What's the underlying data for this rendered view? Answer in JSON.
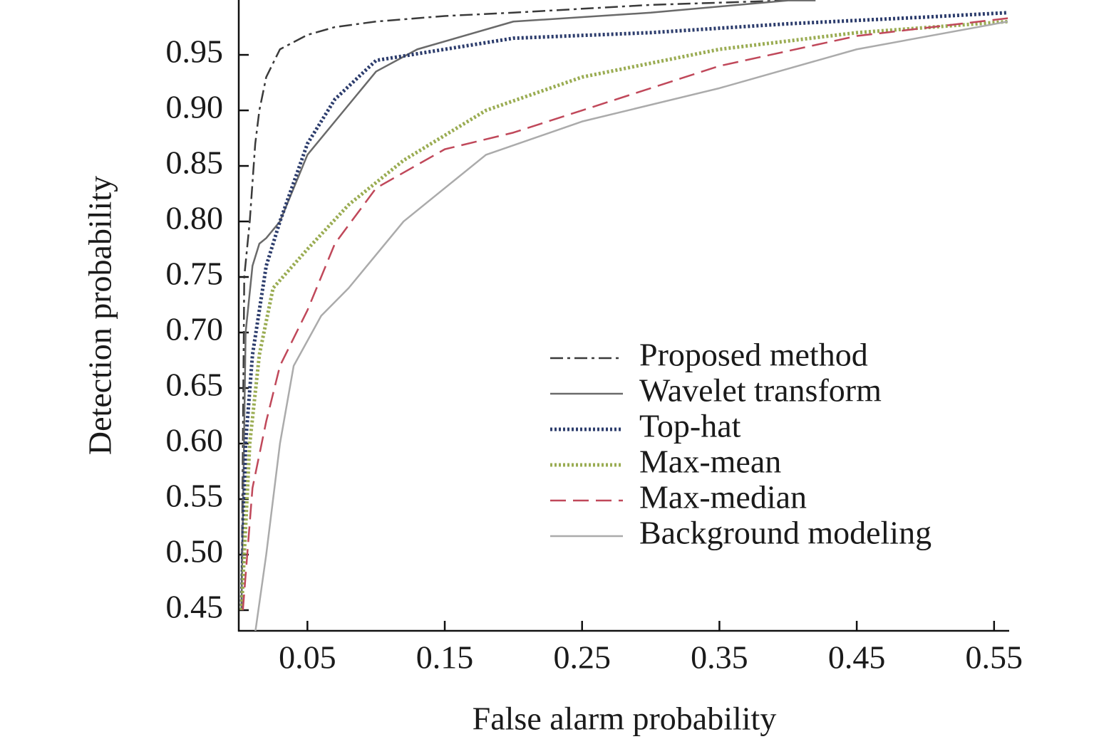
{
  "chart_data": {
    "type": "line",
    "xlabel": "False alarm probability",
    "ylabel": "Detection probability",
    "xlim": [
      0,
      0.561
    ],
    "ylim": [
      0.4314,
      0.9994
    ],
    "xticks": [
      0.05,
      0.15,
      0.25,
      0.35,
      0.45,
      0.55
    ],
    "yticks": [
      0.45,
      {
        "value": 0.5,
        "label": "0.50"
      },
      0.55,
      {
        "value": 0.6,
        "label": "0.60"
      },
      0.65,
      {
        "value": 0.7,
        "label": "0.70"
      },
      0.75,
      {
        "value": 0.8,
        "label": "0.80"
      },
      0.85,
      {
        "value": 0.9,
        "label": "0.90"
      },
      0.95
    ],
    "legend": "lower-right",
    "series": [
      {
        "name": "Proposed method",
        "color": "#3a3a3a",
        "dash": "dashdot",
        "x": [
          0.002,
          0.004,
          0.008,
          0.012,
          0.015,
          0.02,
          0.03,
          0.05,
          0.07,
          0.1,
          0.15,
          0.2,
          0.3,
          0.4
        ],
        "values": [
          0.45,
          0.75,
          0.8,
          0.87,
          0.9,
          0.93,
          0.955,
          0.968,
          0.975,
          0.98,
          0.985,
          0.988,
          0.995,
          0.999
        ]
      },
      {
        "name": "Wavelet transform",
        "color": "#6a6a6a",
        "dash": "solid",
        "x": [
          0.002,
          0.005,
          0.01,
          0.015,
          0.02,
          0.03,
          0.05,
          0.08,
          0.1,
          0.13,
          0.2,
          0.3,
          0.4,
          0.42
        ],
        "values": [
          0.45,
          0.7,
          0.76,
          0.78,
          0.785,
          0.8,
          0.86,
          0.905,
          0.935,
          0.955,
          0.98,
          0.988,
          0.999,
          0.999
        ]
      },
      {
        "name": "Top-hat",
        "color": "#2c3c6c",
        "dash": "dotted",
        "x": [
          0.002,
          0.005,
          0.01,
          0.02,
          0.03,
          0.05,
          0.07,
          0.1,
          0.15,
          0.2,
          0.3,
          0.4,
          0.5,
          0.56
        ],
        "values": [
          0.45,
          0.6,
          0.68,
          0.76,
          0.8,
          0.87,
          0.91,
          0.945,
          0.955,
          0.965,
          0.97,
          0.978,
          0.984,
          0.988
        ]
      },
      {
        "name": "Max-mean",
        "color": "#9aac52",
        "dash": "dotted",
        "x": [
          0.002,
          0.008,
          0.015,
          0.025,
          0.05,
          0.08,
          0.12,
          0.18,
          0.25,
          0.35,
          0.45,
          0.56
        ],
        "values": [
          0.45,
          0.6,
          0.68,
          0.74,
          0.775,
          0.815,
          0.855,
          0.9,
          0.93,
          0.955,
          0.97,
          0.98
        ]
      },
      {
        "name": "Max-median",
        "color": "#c0485a",
        "dash": "dashed",
        "x": [
          0.003,
          0.01,
          0.02,
          0.03,
          0.05,
          0.07,
          0.1,
          0.15,
          0.2,
          0.25,
          0.35,
          0.45,
          0.56
        ],
        "values": [
          0.45,
          0.56,
          0.62,
          0.67,
          0.72,
          0.78,
          0.83,
          0.865,
          0.88,
          0.9,
          0.94,
          0.967,
          0.983
        ]
      },
      {
        "name": "Background modeling",
        "color": "#ababab",
        "dash": "solid",
        "x": [
          0.012,
          0.02,
          0.03,
          0.04,
          0.06,
          0.08,
          0.12,
          0.18,
          0.25,
          0.35,
          0.45,
          0.56
        ],
        "values": [
          0.43,
          0.5,
          0.6,
          0.67,
          0.715,
          0.74,
          0.8,
          0.86,
          0.89,
          0.92,
          0.955,
          0.98
        ]
      }
    ]
  }
}
